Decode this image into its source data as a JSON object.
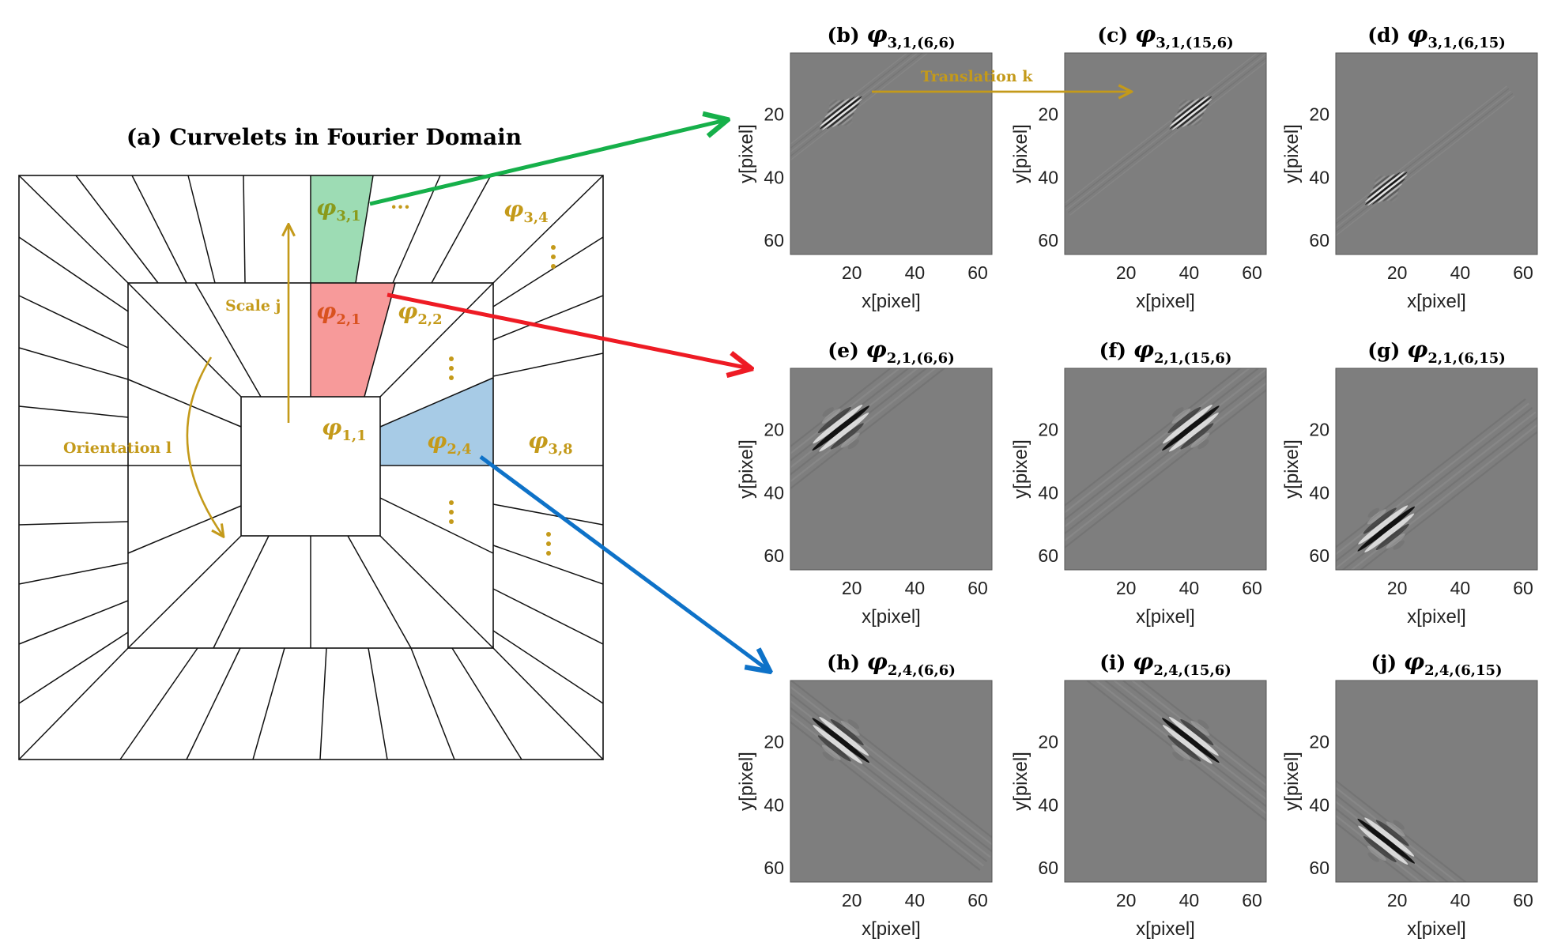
{
  "colors": {
    "gold": "#C49A1A",
    "green_fill": "#9DDCB4",
    "red_fill": "#F79A9A",
    "blue_fill": "#A7CBE6",
    "green_arrow": "#16B04A",
    "red_arrow": "#EE1B24",
    "blue_arrow": "#0E72C8",
    "image_bg": "#7E7E7E"
  },
  "fourier": {
    "title": "(a) Curvelets in Fourier Domain",
    "labels": {
      "phi_3_1": "φ3,1",
      "phi_3_4": "φ3,4",
      "phi_2_1": "φ2,1",
      "phi_2_2": "φ2,2",
      "phi_1_1": "φ1,1",
      "phi_2_4": "φ2,4",
      "phi_3_8": "φ3,8"
    },
    "scale": "Scale j",
    "orientation": "Orientation l",
    "ellipsis": "···"
  },
  "translation_label": "Translation k",
  "axis": {
    "xlabel": "x[pixel]",
    "ylabel": "y[pixel]",
    "ticks": [
      "20",
      "40",
      "60"
    ]
  },
  "panels": [
    {
      "letter": "(b)",
      "sym": "φ",
      "sub": "3,1,(6,6)",
      "cx": 16,
      "cy": 19,
      "dir": "diag-up",
      "scale": 3
    },
    {
      "letter": "(c)",
      "sym": "φ",
      "sub": "3,1,(15,6)",
      "cx": 40,
      "cy": 19,
      "dir": "diag-up",
      "scale": 3
    },
    {
      "letter": "(d)",
      "sym": "φ",
      "sub": "3,1,(6,15)",
      "cx": 16,
      "cy": 43,
      "dir": "diag-up",
      "scale": 3
    },
    {
      "letter": "(e)",
      "sym": "φ",
      "sub": "2,1,(6,6)",
      "cx": 16,
      "cy": 19,
      "dir": "diag-up",
      "scale": 2
    },
    {
      "letter": "(f)",
      "sym": "φ",
      "sub": "2,1,(15,6)",
      "cx": 40,
      "cy": 19,
      "dir": "diag-up",
      "scale": 2
    },
    {
      "letter": "(g)",
      "sym": "φ",
      "sub": "2,1,(6,15)",
      "cx": 16,
      "cy": 51,
      "dir": "diag-up",
      "scale": 2
    },
    {
      "letter": "(h)",
      "sym": "φ",
      "sub": "2,4,(6,6)",
      "cx": 16,
      "cy": 19,
      "dir": "diag-down",
      "scale": 2
    },
    {
      "letter": "(i)",
      "sym": "φ",
      "sub": "2,4,(15,6)",
      "cx": 40,
      "cy": 19,
      "dir": "diag-down",
      "scale": 2
    },
    {
      "letter": "(j)",
      "sym": "φ",
      "sub": "2,4,(6,15)",
      "cx": 16,
      "cy": 51,
      "dir": "diag-down",
      "scale": 2
    }
  ]
}
